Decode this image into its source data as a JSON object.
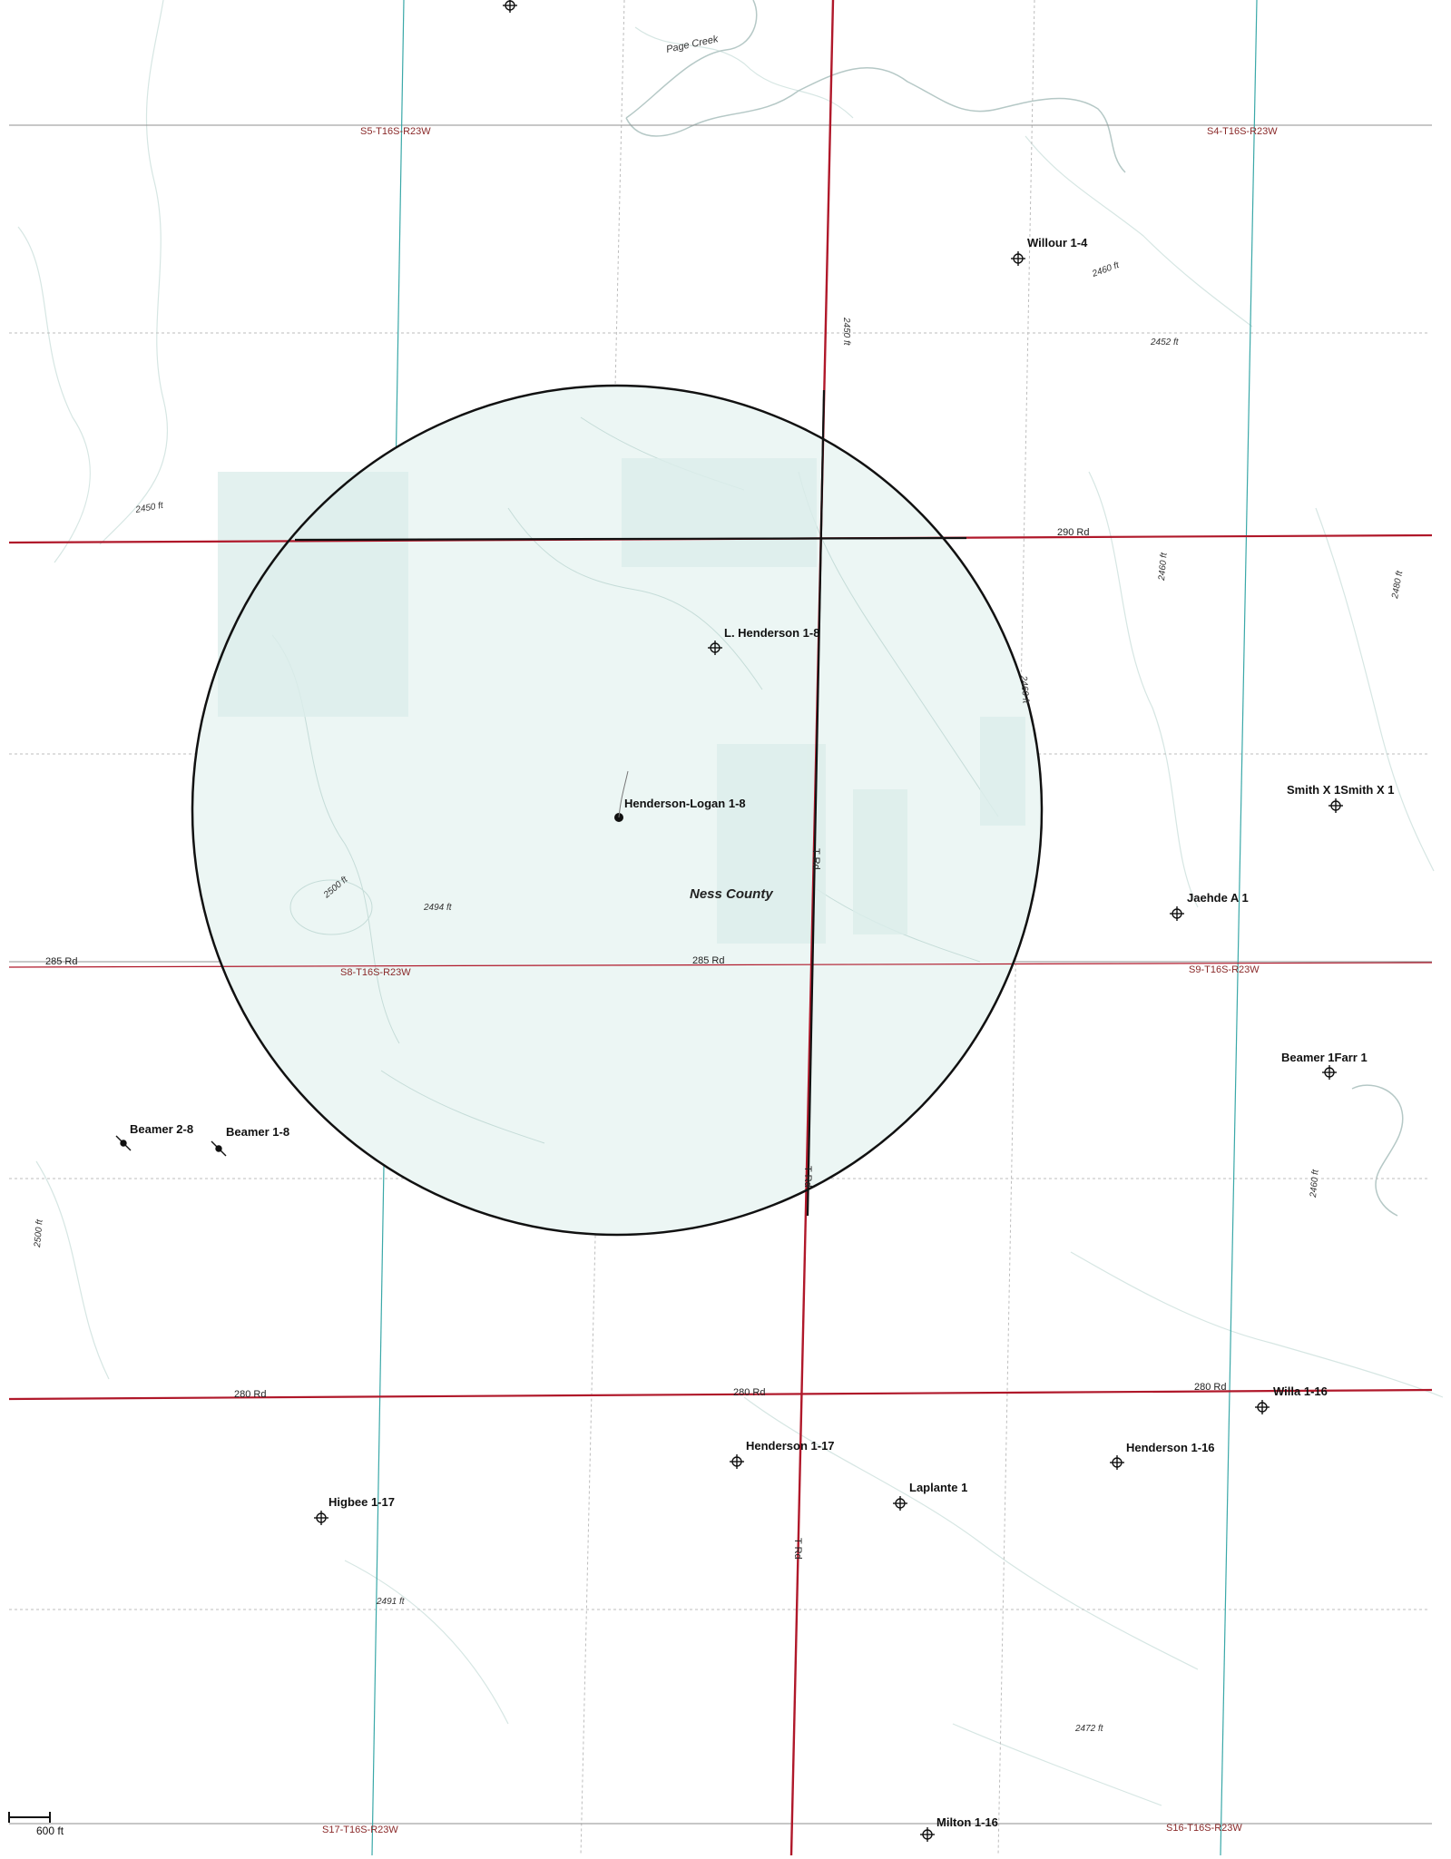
{
  "map": {
    "county_label": "Ness County",
    "creek_label": "Page Creek",
    "scale_label": "600 ft",
    "roads": {
      "road_290": "290 Rd",
      "road_285_left": "285 Rd",
      "road_285_center": "285 Rd",
      "road_280_left": "280 Rd",
      "road_280_center": "280 Rd",
      "road_280_right": "280 Rd",
      "road_t_upper": "T Rd",
      "road_t_mid": "T Rd",
      "road_t_lower": "T Rd"
    },
    "sections": {
      "s5": "S5-T16S-R23W",
      "s4": "S4-T16S-R23W",
      "s8": "S8-T16S-R23W",
      "s9": "S9-T16S-R23W",
      "s17": "S17-T16S-R23W",
      "s16": "S16-T16S-R23W"
    },
    "contours": {
      "c1": "2450 ft",
      "c2": "2452 ft",
      "c3": "2460 ft",
      "c4": "2450 ft",
      "c5": "2460 ft",
      "c6": "2480 ft",
      "c7": "2460 ft",
      "c8": "2500 ft",
      "c9": "2494 ft",
      "c10": "2500 ft",
      "c11": "2491 ft",
      "c12": "2472 ft",
      "c13": "2460 ft"
    },
    "wells": {
      "willour": "Willour 1-4",
      "l_henderson": "L. Henderson 1-8",
      "henderson_logan": "Henderson-Logan 1-8",
      "smith": "Smith X 1Smith X 1",
      "jaehde": "Jaehde A 1",
      "beamer_farr": "Beamer 1Farr 1",
      "beamer_2_8": "Beamer 2-8",
      "beamer_1_8": "Beamer 1-8",
      "willa": "Willa 1-16",
      "henderson_1_17": "Henderson 1-17",
      "henderson_1_16": "Henderson 1-16",
      "laplante": "Laplante 1",
      "higbee": "Higbee 1-17",
      "milton": "Milton 1-16"
    },
    "colors": {
      "road_red": "#b0182a",
      "road_black": "#111111",
      "section_line": "#9a9a9a",
      "quarter_line": "#b8b8b8",
      "survey_line": "#3aa8a8",
      "contour": "#cfe3e0",
      "circle_fill": "#eaf5f3",
      "circle_stroke": "#111111"
    }
  }
}
